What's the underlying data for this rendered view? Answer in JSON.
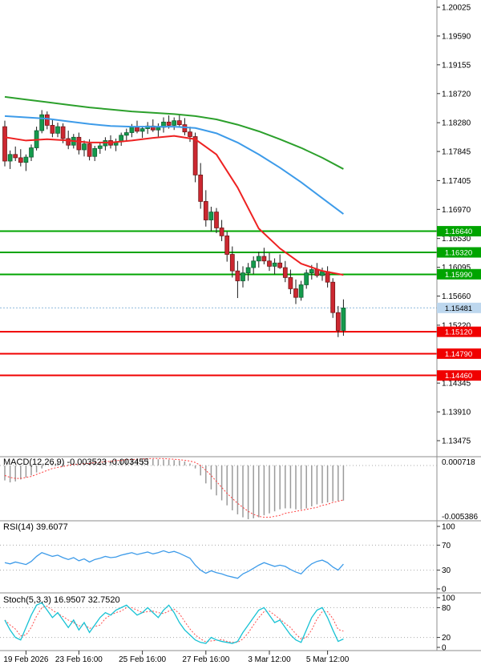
{
  "panel_titles": {
    "macd": "MACD(12,26,9) -0.003523 -0.003455",
    "rsi": "RSI(14) 39.6077",
    "stoch": "Stoch(5,3,3) 16.9507 32.7520"
  },
  "colors": {
    "background": "#ffffff",
    "bull": "#149a4c",
    "bear": "#cc2831",
    "bull_border": "#0e5c30",
    "bear_border": "#6e1414",
    "wick": "#1a1a1a",
    "ma_fast_red": "#ee2222",
    "ma_mid_blue": "#3d9be9",
    "ma_slow_green": "#2ca02c",
    "level_green": "#00a400",
    "level_red": "#f00000",
    "current_price_line": "#8cb8dc",
    "current_price_box_bg": "#bdd7ee",
    "current_price_box_text": "#000000",
    "level_box_text": "#ffffff",
    "macd_hist": "#9b9b9b",
    "macd_signal": "#ff3c3c",
    "rsi_line": "#3d9be9",
    "stoch_k": "#17c2d4",
    "stoch_d": "#ff4d4d",
    "separator": "#8c8c8c",
    "axis_text": "#000000",
    "dotted_level": "#aaaaaa"
  },
  "chart_data": [
    {
      "type": "candlestick",
      "title": "",
      "y_axis": {
        "tick_labels": [
          "1.20025",
          "1.19590",
          "1.19155",
          "1.18720",
          "1.18280",
          "1.17845",
          "1.17405",
          "1.16970",
          "1.16530",
          "1.16095",
          "1.15660",
          "1.15220",
          "1.14345",
          "1.13910",
          "1.13475"
        ],
        "range_top": 1.20025,
        "range_bottom": 1.13475
      },
      "x_axis": {
        "ticks": [
          {
            "index": 4,
            "label": "19 Feb 2026"
          },
          {
            "index": 14,
            "label": "23 Feb 16:00"
          },
          {
            "index": 26,
            "label": "25 Feb 16:00"
          },
          {
            "index": 38,
            "label": "27 Feb 16:00"
          },
          {
            "index": 50,
            "label": "3 Mar 12:00"
          },
          {
            "index": 61,
            "label": "5 Mar 12:00"
          }
        ]
      },
      "levels": {
        "resistance_green": [
          "1.16640",
          "1.16320",
          "1.15990"
        ],
        "support_red": [
          "1.15120",
          "1.14790",
          "1.14460"
        ],
        "current_price": "1.15481"
      },
      "candles": [
        [
          1.1822,
          1.1831,
          1.1762,
          1.177
        ],
        [
          1.177,
          1.1786,
          1.1758,
          1.178
        ],
        [
          1.178,
          1.1792,
          1.177,
          1.1775
        ],
        [
          1.1775,
          1.1788,
          1.1762,
          1.1768
        ],
        [
          1.1768,
          1.178,
          1.1755,
          1.1776
        ],
        [
          1.1776,
          1.1795,
          1.177,
          1.179
        ],
        [
          1.179,
          1.1822,
          1.1786,
          1.1816
        ],
        [
          1.1816,
          1.1847,
          1.1812,
          1.184
        ],
        [
          1.184,
          1.1845,
          1.1818,
          1.1824
        ],
        [
          1.1824,
          1.1832,
          1.1806,
          1.1812
        ],
        [
          1.1812,
          1.1828,
          1.1806,
          1.1822
        ],
        [
          1.1822,
          1.1827,
          1.1797,
          1.1804
        ],
        [
          1.1804,
          1.1816,
          1.1788,
          1.1794
        ],
        [
          1.1794,
          1.1811,
          1.1789,
          1.1806
        ],
        [
          1.1806,
          1.1813,
          1.178,
          1.1787
        ],
        [
          1.1787,
          1.1801,
          1.1777,
          1.1796
        ],
        [
          1.1796,
          1.1803,
          1.1771,
          1.1777
        ],
        [
          1.1777,
          1.1793,
          1.177,
          1.1789
        ],
        [
          1.1789,
          1.1799,
          1.1781,
          1.1793
        ],
        [
          1.1793,
          1.1806,
          1.1786,
          1.1801
        ],
        [
          1.1801,
          1.1809,
          1.1789,
          1.1794
        ],
        [
          1.1794,
          1.1804,
          1.1785,
          1.1799
        ],
        [
          1.1799,
          1.1813,
          1.1793,
          1.1809
        ],
        [
          1.1809,
          1.1819,
          1.1801,
          1.1813
        ],
        [
          1.1813,
          1.1826,
          1.1806,
          1.1821
        ],
        [
          1.1821,
          1.1831,
          1.1812,
          1.1815
        ],
        [
          1.1815,
          1.1823,
          1.1805,
          1.1819
        ],
        [
          1.1819,
          1.1829,
          1.1811,
          1.1823
        ],
        [
          1.1823,
          1.1833,
          1.1814,
          1.1817
        ],
        [
          1.1817,
          1.1827,
          1.1807,
          1.1821
        ],
        [
          1.1821,
          1.1836,
          1.1813,
          1.1829
        ],
        [
          1.1829,
          1.1839,
          1.1819,
          1.1824
        ],
        [
          1.1824,
          1.1836,
          1.1817,
          1.1831
        ],
        [
          1.1831,
          1.1841,
          1.1821,
          1.1825
        ],
        [
          1.1825,
          1.1835,
          1.1809,
          1.1814
        ],
        [
          1.1814,
          1.1822,
          1.1799,
          1.1807
        ],
        [
          1.1807,
          1.1813,
          1.1738,
          1.1749
        ],
        [
          1.1749,
          1.1767,
          1.1698,
          1.1709
        ],
        [
          1.1709,
          1.1726,
          1.1671,
          1.1681
        ],
        [
          1.1681,
          1.1701,
          1.1664,
          1.1693
        ],
        [
          1.1693,
          1.1699,
          1.1661,
          1.1669
        ],
        [
          1.1669,
          1.1681,
          1.1649,
          1.1657
        ],
        [
          1.1657,
          1.1663,
          1.1618,
          1.1629
        ],
        [
          1.1629,
          1.1641,
          1.1594,
          1.1604
        ],
        [
          1.1604,
          1.1619,
          1.1563,
          1.1589
        ],
        [
          1.1589,
          1.1611,
          1.1579,
          1.1601
        ],
        [
          1.1601,
          1.1616,
          1.1589,
          1.1609
        ],
        [
          1.1609,
          1.1626,
          1.1599,
          1.1619
        ],
        [
          1.1619,
          1.1633,
          1.1609,
          1.1626
        ],
        [
          1.1626,
          1.1639,
          1.1614,
          1.1619
        ],
        [
          1.1619,
          1.1631,
          1.1604,
          1.1611
        ],
        [
          1.1611,
          1.1623,
          1.1599,
          1.1616
        ],
        [
          1.1616,
          1.1629,
          1.1607,
          1.1609
        ],
        [
          1.1609,
          1.1619,
          1.1587,
          1.1594
        ],
        [
          1.1594,
          1.1606,
          1.1569,
          1.1577
        ],
        [
          1.1577,
          1.1591,
          1.1554,
          1.1564
        ],
        [
          1.1564,
          1.1589,
          1.1559,
          1.1583
        ],
        [
          1.1583,
          1.1606,
          1.1577,
          1.1601
        ],
        [
          1.1601,
          1.1613,
          1.1591,
          1.1606
        ],
        [
          1.1606,
          1.1616,
          1.1594,
          1.1597
        ],
        [
          1.1597,
          1.1609,
          1.1589,
          1.1603
        ],
        [
          1.1603,
          1.1611,
          1.1579,
          1.1587
        ],
        [
          1.1587,
          1.1593,
          1.1533,
          1.1541
        ],
        [
          1.1541,
          1.1551,
          1.1504,
          1.1514
        ],
        [
          1.1514,
          1.1561,
          1.1506,
          1.1548
        ]
      ],
      "moving_averages": [
        {
          "name": "ma-slow-green",
          "color_key": "ma_slow_green",
          "step": 4,
          "values": [
            1.1867,
            1.1863,
            1.1859,
            1.1855,
            1.1851,
            1.1848,
            1.1845,
            1.1843,
            1.1841,
            1.1838,
            1.1833,
            1.1825,
            1.1815,
            1.1803,
            1.179,
            1.1775,
            1.1758
          ]
        },
        {
          "name": "ma-mid-blue",
          "color_key": "ma_mid_blue",
          "step": 4,
          "values": [
            1.1838,
            1.1836,
            1.1834,
            1.183,
            1.1826,
            1.1823,
            1.1822,
            1.1822,
            1.1822,
            1.182,
            1.1812,
            1.1798,
            1.178,
            1.176,
            1.1738,
            1.1714,
            1.169
          ]
        },
        {
          "name": "ma-fast-red",
          "color_key": "ma_fast_red",
          "step": 4,
          "values": [
            1.1806,
            1.1801,
            1.1803,
            1.1801,
            1.1798,
            1.1798,
            1.1801,
            1.1805,
            1.1808,
            1.1803,
            1.178,
            1.173,
            1.1668,
            1.1638,
            1.1615,
            1.1604,
            1.1598
          ]
        }
      ]
    },
    {
      "type": "bar",
      "name": "MACD(12,26,9)",
      "value_main": -0.003523,
      "value_signal": -0.003455,
      "ylim": [
        -0.005386,
        0.000718
      ],
      "axis_labels": [
        "0.000718",
        "-0.005386"
      ],
      "histogram": [
        -0.0015,
        -0.0017,
        -0.0016,
        -0.0014,
        -0.0012,
        -0.001,
        -0.0007,
        -0.0003,
        0,
        0.0002,
        0.0003,
        0.0002,
        0.0001,
        0.0002,
        0.0001,
        0.0002,
        0.0003,
        0.0004,
        0.0004,
        0.0005,
        0.0005,
        0.0006,
        0.0006,
        0.0007,
        0.000718,
        0.0007,
        0.00068,
        0.00066,
        0.00064,
        0.00062,
        0.0006,
        0.00058,
        0.00054,
        0.0005,
        0.0004,
        0.0002,
        -0.0003,
        -0.001,
        -0.0018,
        -0.0024,
        -0.003,
        -0.0035,
        -0.004,
        -0.0045,
        -0.0049,
        -0.0052,
        -0.005386,
        -0.0053,
        -0.0052,
        -0.005,
        -0.0048,
        -0.0046,
        -0.0044,
        -0.0043,
        -0.0043,
        -0.0044,
        -0.0044,
        -0.0043,
        -0.0041,
        -0.0039,
        -0.0038,
        -0.0037,
        -0.0036,
        -0.00355,
        -0.003523
      ],
      "signal": [
        -0.001,
        -0.0012,
        -0.0013,
        -0.0013,
        -0.0012,
        -0.0011,
        -0.0009,
        -0.0007,
        -0.0005,
        -0.0003,
        -0.0002,
        -0.0001,
        0,
        0.0001,
        0.0001,
        0.0002,
        0.0002,
        0.0003,
        0.0003,
        0.0004,
        0.0004,
        0.0005,
        0.0005,
        0.0006,
        0.0006,
        0.00063,
        0.00066,
        0.00068,
        0.0007,
        0.0007,
        0.00069,
        0.00066,
        0.00062,
        0.00058,
        0.00052,
        0.00044,
        0.0003,
        0,
        -0.0005,
        -0.001,
        -0.0016,
        -0.0022,
        -0.0028,
        -0.0033,
        -0.0038,
        -0.0042,
        -0.0046,
        -0.0049,
        -0.0051,
        -0.0052,
        -0.0052,
        -0.0051,
        -0.005,
        -0.0048,
        -0.0047,
        -0.0046,
        -0.0045,
        -0.0044,
        -0.0043,
        -0.0042,
        -0.004,
        -0.0039,
        -0.0037,
        -0.0036,
        -0.003455
      ]
    },
    {
      "type": "line",
      "name": "RSI(14)",
      "value": 39.6077,
      "ylim": [
        0,
        100
      ],
      "axis_labels": [
        "100",
        "70",
        "30",
        "0"
      ],
      "levels": [
        70,
        30
      ],
      "values": [
        42,
        40,
        43,
        41,
        39,
        44,
        52,
        58,
        55,
        52,
        54,
        50,
        47,
        50,
        45,
        48,
        43,
        47,
        49,
        52,
        50,
        51,
        54,
        56,
        58,
        55,
        57,
        59,
        56,
        58,
        61,
        58,
        60,
        57,
        53,
        49,
        38,
        30,
        25,
        29,
        26,
        24,
        21,
        19,
        17,
        24,
        28,
        33,
        38,
        42,
        39,
        36,
        38,
        36,
        31,
        27,
        24,
        33,
        40,
        44,
        46,
        42,
        35,
        30,
        39.6077
      ]
    },
    {
      "type": "line",
      "name": "Stoch(5,3,3)",
      "value_k": 16.9507,
      "value_d": 32.752,
      "ylim": [
        0,
        100
      ],
      "axis_labels": [
        "100",
        "80",
        "20",
        "0"
      ],
      "levels": [
        80,
        20
      ],
      "k": [
        55,
        35,
        20,
        15,
        40,
        65,
        85,
        90,
        75,
        60,
        70,
        55,
        40,
        55,
        35,
        50,
        30,
        45,
        60,
        70,
        65,
        75,
        80,
        85,
        75,
        65,
        70,
        80,
        70,
        60,
        75,
        85,
        70,
        50,
        35,
        25,
        15,
        10,
        8,
        20,
        15,
        12,
        10,
        8,
        12,
        30,
        45,
        60,
        75,
        80,
        65,
        50,
        55,
        40,
        25,
        15,
        10,
        35,
        60,
        75,
        80,
        60,
        35,
        12,
        16.9507
      ],
      "d": [
        55,
        45,
        37,
        23,
        25,
        40,
        63,
        80,
        83,
        75,
        68,
        62,
        55,
        50,
        43,
        47,
        38,
        42,
        45,
        58,
        65,
        70,
        73,
        80,
        80,
        75,
        70,
        72,
        73,
        70,
        68,
        73,
        77,
        68,
        52,
        37,
        25,
        17,
        11,
        13,
        14,
        16,
        12,
        10,
        10,
        17,
        29,
        45,
        60,
        72,
        73,
        65,
        57,
        48,
        40,
        27,
        17,
        20,
        35,
        57,
        72,
        72,
        58,
        36,
        32.752
      ]
    }
  ]
}
